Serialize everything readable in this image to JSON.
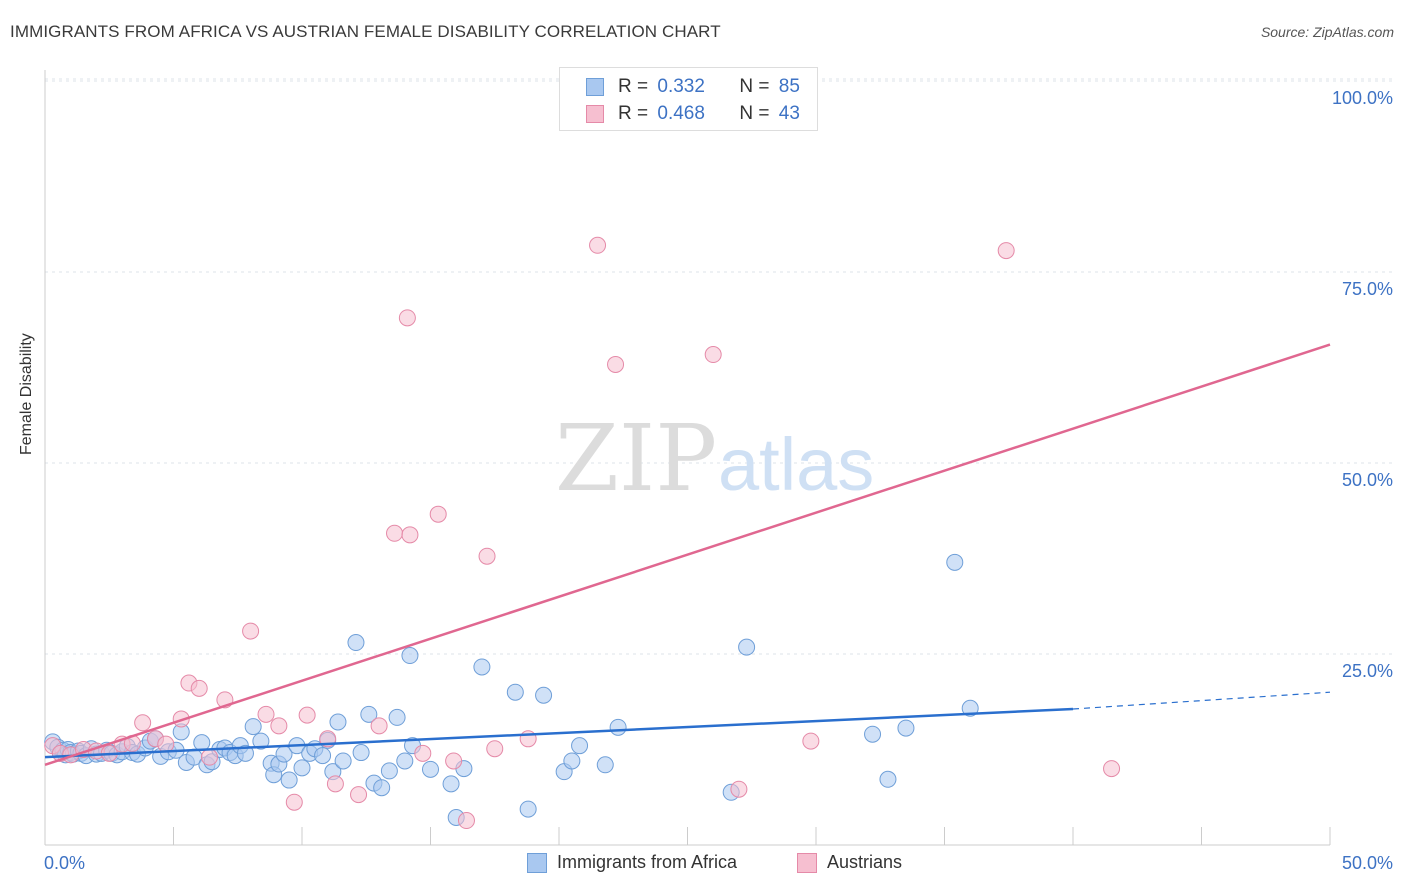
{
  "title": "IMMIGRANTS FROM AFRICA VS AUSTRIAN FEMALE DISABILITY CORRELATION CHART",
  "source": "Source: ZipAtlas.com",
  "watermark": {
    "zip": "ZIP",
    "atlas": "atlas"
  },
  "legend_top": [
    {
      "r_label": "R =",
      "r_value": "0.332",
      "n_label": "N =",
      "n_value": "85"
    },
    {
      "r_label": "R =",
      "r_value": "0.468",
      "n_label": "N =",
      "n_value": "43"
    }
  ],
  "legend_bottom": [
    {
      "label": "Immigrants from Africa"
    },
    {
      "label": "Austrians"
    }
  ],
  "colors": {
    "blue_fill": "#a9c8f0",
    "blue_stroke": "#6f9fd8",
    "blue_line": "#2a6fce",
    "pink_fill": "#f6bfd0",
    "pink_stroke": "#e58aa8",
    "pink_line": "#e06790",
    "axis_text": "#3d72c4",
    "grid": "#dde3ea"
  },
  "chart_data": {
    "type": "scatter",
    "title": "IMMIGRANTS FROM AFRICA VS AUSTRIAN FEMALE DISABILITY CORRELATION CHART",
    "xlabel": "",
    "ylabel": "Female Disability",
    "xlim": [
      0,
      50
    ],
    "ylim": [
      0,
      105
    ],
    "x_tick_labels": [
      "0.0%",
      "50.0%"
    ],
    "y_ticks": [
      25,
      50,
      75,
      100
    ],
    "y_tick_labels": [
      "25.0%",
      "50.0%",
      "75.0%",
      "100.0%"
    ],
    "grid": true,
    "legend_placement": "top-center",
    "series": [
      {
        "name": "Immigrants from Africa",
        "color": "#a9c8f0",
        "points": [
          [
            0.3,
            13.5
          ],
          [
            0.5,
            12.8
          ],
          [
            0.6,
            12.0
          ],
          [
            0.7,
            12.4
          ],
          [
            0.8,
            11.8
          ],
          [
            0.9,
            12.5
          ],
          [
            1.0,
            12.1
          ],
          [
            1.1,
            11.9
          ],
          [
            1.3,
            12.3
          ],
          [
            1.4,
            12.0
          ],
          [
            1.6,
            11.7
          ],
          [
            1.8,
            12.6
          ],
          [
            2.0,
            11.9
          ],
          [
            2.2,
            12.0
          ],
          [
            2.4,
            12.4
          ],
          [
            2.6,
            12.0
          ],
          [
            2.8,
            11.8
          ],
          [
            3.0,
            12.2
          ],
          [
            3.2,
            12.9
          ],
          [
            3.4,
            12.1
          ],
          [
            3.6,
            11.9
          ],
          [
            3.9,
            12.7
          ],
          [
            4.1,
            13.6
          ],
          [
            4.3,
            13.9
          ],
          [
            4.5,
            11.6
          ],
          [
            4.8,
            12.2
          ],
          [
            5.1,
            12.4
          ],
          [
            5.3,
            14.8
          ],
          [
            5.5,
            10.8
          ],
          [
            5.8,
            11.5
          ],
          [
            6.1,
            13.4
          ],
          [
            6.3,
            10.5
          ],
          [
            6.5,
            10.9
          ],
          [
            6.8,
            12.5
          ],
          [
            7.0,
            12.7
          ],
          [
            7.2,
            12.1
          ],
          [
            7.4,
            11.7
          ],
          [
            7.6,
            13.0
          ],
          [
            7.8,
            12.0
          ],
          [
            8.1,
            15.5
          ],
          [
            8.4,
            13.6
          ],
          [
            8.8,
            10.7
          ],
          [
            8.9,
            9.2
          ],
          [
            9.1,
            10.6
          ],
          [
            9.3,
            11.9
          ],
          [
            9.5,
            8.5
          ],
          [
            9.8,
            13.0
          ],
          [
            10.0,
            10.1
          ],
          [
            10.3,
            12.0
          ],
          [
            10.5,
            12.6
          ],
          [
            10.8,
            11.7
          ],
          [
            11.0,
            13.7
          ],
          [
            11.2,
            9.6
          ],
          [
            11.4,
            16.1
          ],
          [
            11.6,
            11.0
          ],
          [
            12.1,
            26.5
          ],
          [
            12.3,
            12.1
          ],
          [
            12.6,
            17.1
          ],
          [
            12.8,
            8.1
          ],
          [
            13.1,
            7.5
          ],
          [
            13.4,
            9.7
          ],
          [
            13.7,
            16.7
          ],
          [
            14.0,
            11.0
          ],
          [
            14.2,
            24.8
          ],
          [
            14.3,
            13.0
          ],
          [
            15.0,
            9.9
          ],
          [
            15.8,
            8.0
          ],
          [
            16.3,
            10.0
          ],
          [
            16.0,
            3.6
          ],
          [
            17.0,
            23.3
          ],
          [
            18.3,
            20.0
          ],
          [
            18.8,
            4.7
          ],
          [
            19.4,
            19.6
          ],
          [
            20.2,
            9.6
          ],
          [
            20.5,
            11.0
          ],
          [
            20.8,
            13.0
          ],
          [
            21.8,
            10.5
          ],
          [
            22.3,
            15.4
          ],
          [
            26.7,
            6.9
          ],
          [
            27.3,
            25.9
          ],
          [
            32.2,
            14.5
          ],
          [
            32.8,
            8.6
          ],
          [
            33.5,
            15.3
          ],
          [
            35.4,
            37.0
          ],
          [
            36.0,
            17.9
          ]
        ],
        "trend": {
          "x0": 0,
          "y0": 11.5,
          "x1": 40,
          "y1": 17.8,
          "dashed_to_x": 50,
          "dashed_to_y": 20.0
        }
      },
      {
        "name": "Austrians",
        "color": "#f6bfd0",
        "points": [
          [
            0.3,
            13.0
          ],
          [
            0.6,
            12.0
          ],
          [
            1.0,
            11.8
          ],
          [
            1.5,
            12.5
          ],
          [
            2.0,
            12.3
          ],
          [
            2.5,
            12.0
          ],
          [
            3.0,
            13.2
          ],
          [
            3.4,
            13.3
          ],
          [
            3.8,
            16.0
          ],
          [
            4.3,
            13.9
          ],
          [
            4.7,
            13.2
          ],
          [
            5.3,
            16.5
          ],
          [
            5.6,
            21.2
          ],
          [
            6.0,
            20.5
          ],
          [
            6.4,
            11.5
          ],
          [
            7.0,
            19.0
          ],
          [
            8.0,
            28.0
          ],
          [
            8.6,
            17.1
          ],
          [
            9.1,
            15.6
          ],
          [
            9.7,
            5.6
          ],
          [
            10.2,
            17.0
          ],
          [
            11.0,
            13.9
          ],
          [
            11.3,
            8.0
          ],
          [
            12.2,
            6.6
          ],
          [
            13.0,
            15.6
          ],
          [
            13.6,
            40.8
          ],
          [
            14.2,
            40.6
          ],
          [
            14.1,
            69.0
          ],
          [
            14.7,
            12.0
          ],
          [
            15.3,
            43.3
          ],
          [
            15.9,
            11.0
          ],
          [
            16.4,
            3.2
          ],
          [
            17.2,
            37.8
          ],
          [
            17.5,
            12.6
          ],
          [
            18.8,
            13.9
          ],
          [
            21.5,
            78.5
          ],
          [
            22.2,
            62.9
          ],
          [
            26.0,
            64.2
          ],
          [
            27.0,
            7.3
          ],
          [
            28.0,
            100.0
          ],
          [
            29.8,
            13.6
          ],
          [
            37.4,
            77.8
          ],
          [
            41.5,
            10.0
          ]
        ],
        "trend": {
          "x0": 0,
          "y0": 10.5,
          "x1": 50,
          "y1": 65.5
        }
      }
    ]
  }
}
